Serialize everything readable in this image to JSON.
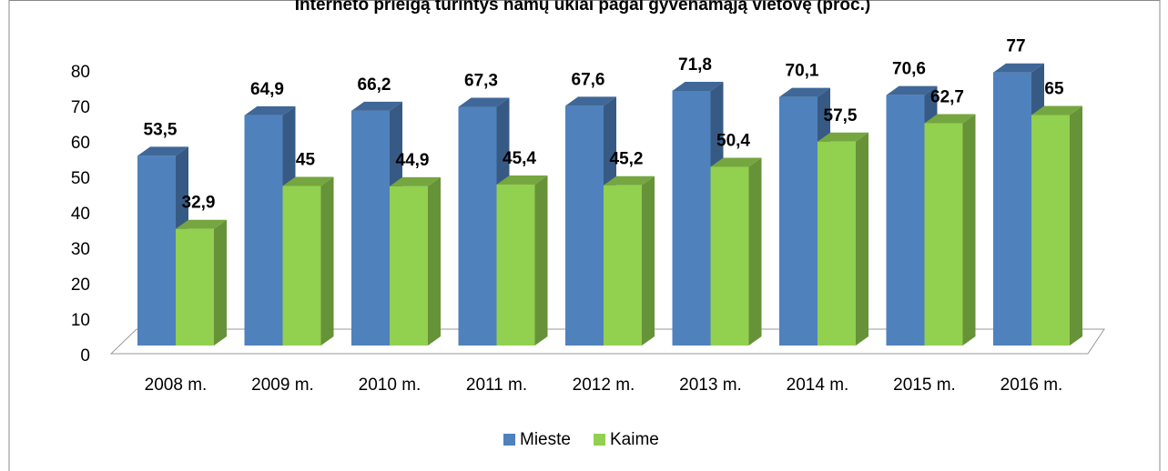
{
  "chart_data": {
    "type": "bar3d",
    "title": "Interneto prieigą turintys namų ūkiai pagal gyvenamąją vietovę (proc.)",
    "categories": [
      "2008 m.",
      "2009 m.",
      "2010 m.",
      "2011 m.",
      "2012 m.",
      "2013 m.",
      "2014 m.",
      "2015 m.",
      "2016 m."
    ],
    "series": [
      {
        "name": "Mieste",
        "color": "#4f81bd",
        "values": [
          53.5,
          64.9,
          66.2,
          67.3,
          67.6,
          71.8,
          70.1,
          70.6,
          77
        ],
        "value_labels": [
          "53,5",
          "64,9",
          "66,2",
          "67,3",
          "67,6",
          "71,8",
          "70,1",
          "70,6",
          "77"
        ]
      },
      {
        "name": "Kaime",
        "color": "#92d050",
        "values": [
          32.9,
          45,
          44.9,
          45.4,
          45.2,
          50.4,
          57.5,
          62.7,
          65
        ],
        "value_labels": [
          "32,9",
          "45",
          "44,9",
          "45,4",
          "45,2",
          "50,4",
          "57,5",
          "62,7",
          "65"
        ]
      }
    ],
    "ylim": [
      0,
      80
    ],
    "yticks": [
      0,
      10,
      20,
      30,
      40,
      50,
      60,
      70,
      80
    ],
    "legend": "bottom"
  }
}
